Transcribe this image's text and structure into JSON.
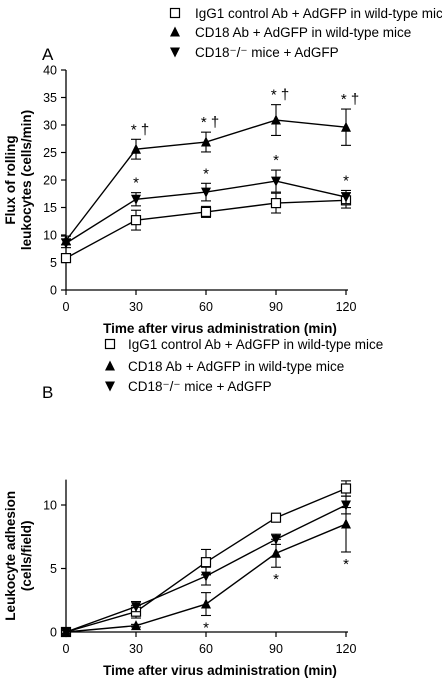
{
  "chart_data": [
    {
      "panel": "A",
      "type": "line",
      "xlabel": "Time after virus administration (min)",
      "ylabel_lines": [
        "Flux of rolling",
        "leukocytes (cells/min)"
      ],
      "x": [
        0,
        30,
        60,
        90,
        120
      ],
      "xticks": [
        "0",
        "30",
        "60",
        "90",
        "120"
      ],
      "yticks": [
        "0",
        "5",
        "10",
        "15",
        "20",
        "25",
        "30",
        "35",
        "40"
      ],
      "xlim": [
        0,
        120
      ],
      "ylim": [
        0,
        40
      ],
      "legend": {
        "placement": "top"
      },
      "series": [
        {
          "name": "IgG1 control Ab + AdGFP in wild-type mice",
          "marker": "square-open",
          "values": [
            5.8,
            12.7,
            14.2,
            15.8,
            16.3
          ],
          "err_up": [
            0.7,
            1.8,
            1.0,
            1.8,
            1.4
          ],
          "err_down": [
            0.7,
            1.8,
            1.0,
            1.8,
            1.4
          ],
          "annotations": []
        },
        {
          "name": "CD18 Ab + AdGFP in wild-type mice",
          "marker": "triangle-up-filled",
          "values": [
            9.0,
            25.6,
            26.9,
            30.9,
            29.6
          ],
          "err_up": [
            0.8,
            1.8,
            1.8,
            2.8,
            3.3
          ],
          "err_down": [
            0.8,
            1.8,
            1.8,
            2.8,
            3.3
          ],
          "annotations": [
            "",
            "* †",
            "* †",
            "* †",
            "* †"
          ]
        },
        {
          "name": "CD18⁻/⁻ mice + AdGFP",
          "marker": "triangle-down-filled",
          "values": [
            8.5,
            16.5,
            17.8,
            19.8,
            16.9
          ],
          "err_up": [
            0.8,
            1.2,
            1.6,
            2.0,
            1.2
          ],
          "err_down": [
            0.8,
            1.2,
            1.6,
            2.0,
            1.2
          ],
          "annotations": [
            "",
            "*",
            "*",
            "*",
            "*"
          ]
        }
      ]
    },
    {
      "panel": "B",
      "type": "line",
      "xlabel": "Time after virus administration (min)",
      "ylabel_lines": [
        "Leukocyte adhesion",
        "(cells/field)"
      ],
      "x": [
        0,
        30,
        60,
        90,
        120
      ],
      "xticks": [
        "0",
        "30",
        "60",
        "90",
        "120"
      ],
      "yticks": [
        "0",
        "5",
        "10"
      ],
      "xlim": [
        0,
        120
      ],
      "ylim": [
        0,
        12
      ],
      "legend": {
        "placement": "top"
      },
      "series": [
        {
          "name": "IgG1 control Ab + AdGFP in wild-type mice",
          "marker": "square-open",
          "values": [
            0,
            1.6,
            5.5,
            9.0,
            11.3
          ],
          "err_up": [
            0.1,
            0.5,
            1.0,
            0.3,
            0.6
          ],
          "err_down": [
            0.1,
            0.5,
            1.0,
            0.3,
            0.6
          ],
          "annotations": []
        },
        {
          "name": "CD18 Ab + AdGFP in wild-type mice",
          "marker": "triangle-up-filled",
          "values": [
            0,
            0.5,
            2.2,
            6.2,
            8.5
          ],
          "err_up": [
            0.1,
            0.1,
            0.9,
            1.1,
            1.3
          ],
          "err_down": [
            0.1,
            0.1,
            0.9,
            1.1,
            2.2
          ],
          "annotations": [
            "",
            "",
            "*",
            "*",
            "*"
          ]
        },
        {
          "name": "CD18⁻/⁻ mice + AdGFP",
          "marker": "triangle-down-filled",
          "values": [
            0,
            2.0,
            4.4,
            7.3,
            10.0
          ],
          "err_up": [
            0.1,
            0.4,
            0.7,
            0.4,
            0.7
          ],
          "err_down": [
            0.1,
            0.4,
            0.7,
            0.4,
            0.7
          ],
          "annotations": []
        }
      ]
    }
  ]
}
